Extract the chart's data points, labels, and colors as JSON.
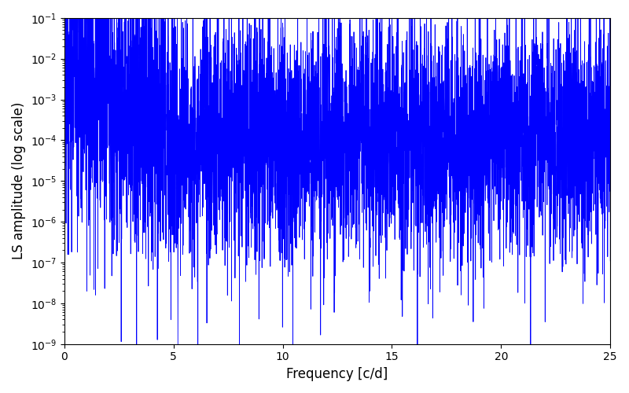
{
  "xlabel": "Frequency [c/d]",
  "ylabel": "LS amplitude (log scale)",
  "xlim": [
    0,
    25
  ],
  "ylim": [
    1e-09,
    0.1
  ],
  "line_color": "#0000ff",
  "line_width": 0.6,
  "background_color": "#ffffff",
  "figsize": [
    8.0,
    5.0
  ],
  "dpi": 100,
  "seed": 12345,
  "n_points": 5000,
  "freq_max": 25.0
}
